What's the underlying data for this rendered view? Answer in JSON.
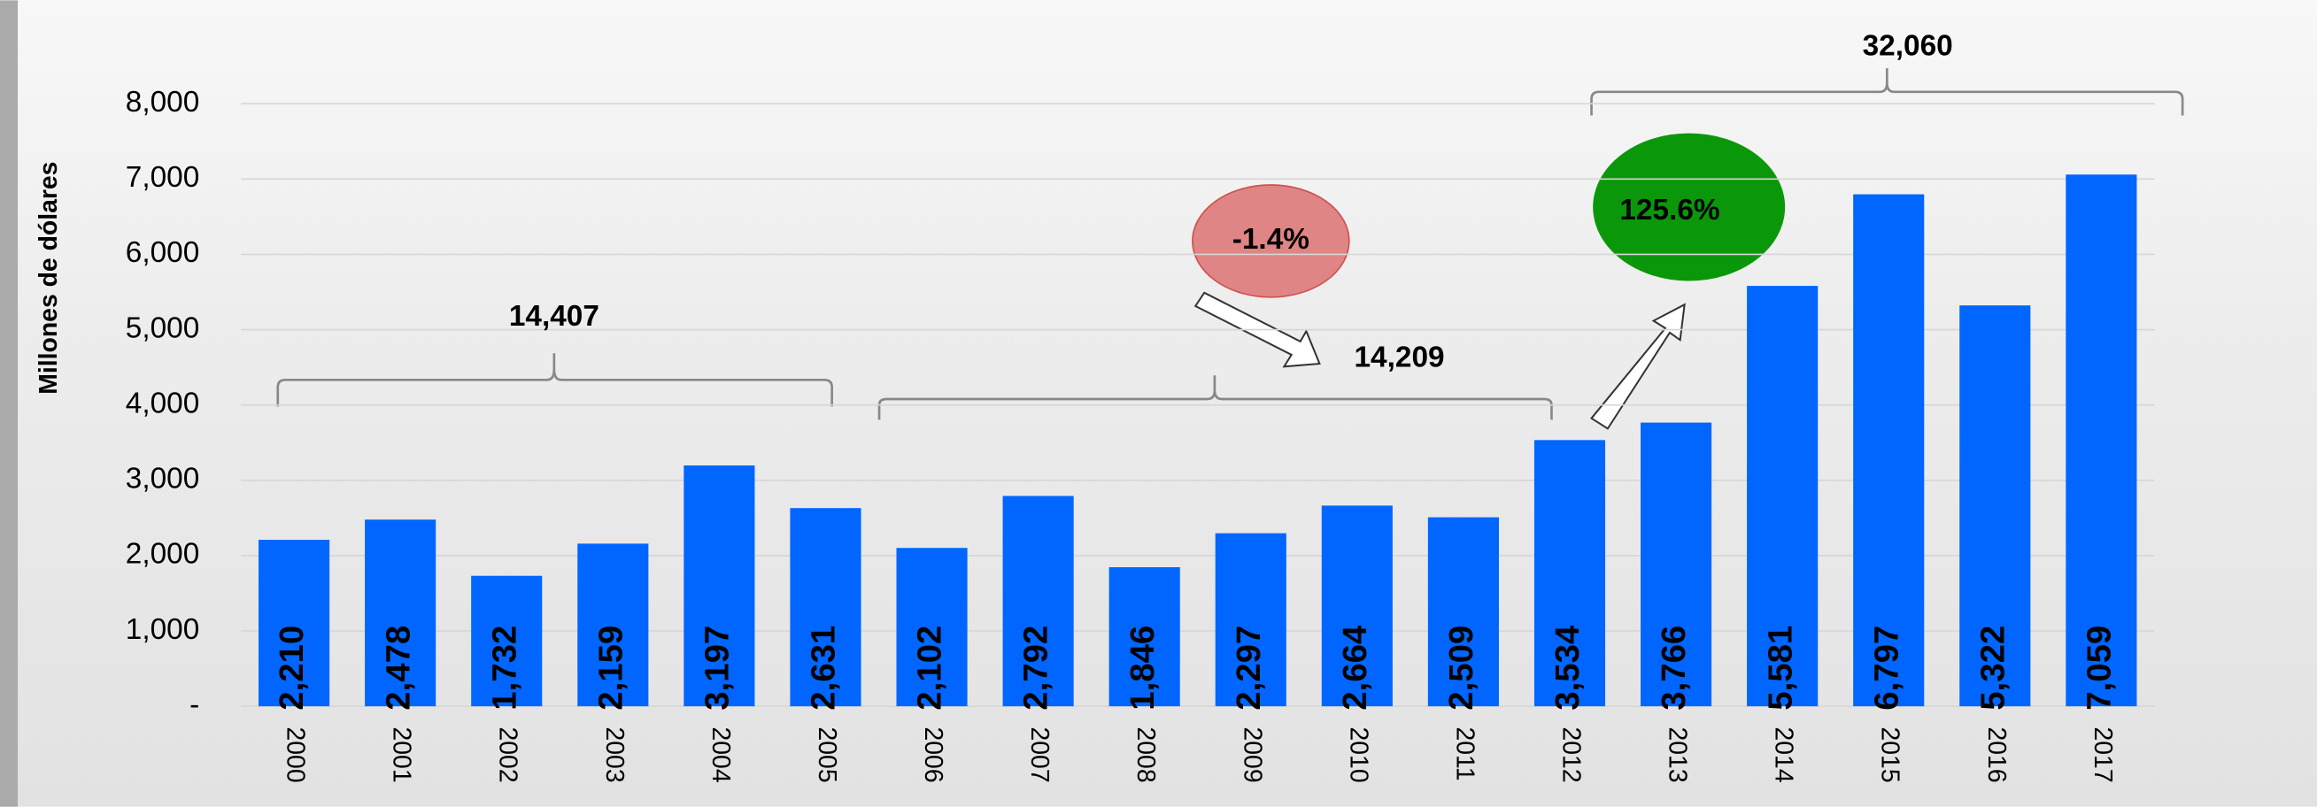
{
  "chart_data": {
    "type": "bar",
    "y_label": "Millones de dólares",
    "categories": [
      "2000",
      "2001",
      "2002",
      "2003",
      "2004",
      "2005",
      "2006",
      "2007",
      "2008",
      "2009",
      "2010",
      "2011",
      "2012",
      "2013",
      "2014",
      "2015",
      "2016",
      "2017"
    ],
    "values": [
      2210,
      2478,
      1732,
      2159,
      3197,
      2631,
      2102,
      2792,
      1846,
      2297,
      2664,
      2509,
      3534,
      3766,
      5581,
      6797,
      5322,
      7059
    ],
    "value_labels": [
      "2,210",
      "2,478",
      "1,732",
      "2,159",
      "3,197",
      "2,631",
      "2,102",
      "2,792",
      "1,846",
      "2,297",
      "2,664",
      "2,509",
      "3,534",
      "3,766",
      "5,581",
      "6,797",
      "5,322",
      "7,059"
    ],
    "color": "#0066ff",
    "ylim": [
      0,
      8000
    ],
    "yticks": [
      {
        "value": 0,
        "label": "-"
      },
      {
        "value": 1000,
        "label": "1,000"
      },
      {
        "value": 2000,
        "label": "2,000"
      },
      {
        "value": 3000,
        "label": "3,000"
      },
      {
        "value": 4000,
        "label": "4,000"
      },
      {
        "value": 5000,
        "label": "5,000"
      },
      {
        "value": 6000,
        "label": "6,000"
      },
      {
        "value": 7000,
        "label": "7,000"
      },
      {
        "value": 8000,
        "label": "8,000"
      }
    ],
    "grid": true,
    "annotations": [
      "14,407",
      "14,209",
      "32,060",
      "-1.4%",
      "125.6%"
    ]
  }
}
